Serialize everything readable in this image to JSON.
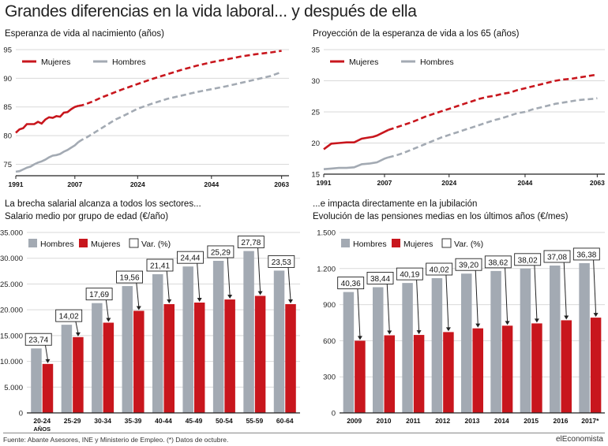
{
  "title": "Grandes diferencias en la vida laboral... y después de ella",
  "source": "Fuente: Abante Asesores, INE y Ministerio de Empleo. (*) Datos de octubre.",
  "brand": "elEconomista",
  "colors": {
    "mujeres": "#c8161d",
    "hombres": "#a3aab3",
    "grid": "#d9d9d9",
    "axis": "#222222"
  },
  "chart_data": [
    {
      "type": "line",
      "subtitle": "Esperanza de vida al nacimiento (años)",
      "ylim": [
        73,
        95
      ],
      "yticks": [
        75,
        80,
        85,
        90,
        95
      ],
      "xlim": [
        1991,
        2065
      ],
      "xticks": [
        1991,
        2007,
        2024,
        2044,
        2063
      ],
      "grid": true,
      "legend": "top-left",
      "series": [
        {
          "name": "Mujeres",
          "style": "solid-then-dashed",
          "x": [
            1991,
            1992,
            1993,
            1994,
            1995,
            1996,
            1997,
            1998,
            1999,
            2000,
            2001,
            2002,
            2003,
            2004,
            2005,
            2006,
            2007,
            2008,
            2009,
            2010,
            2012,
            2014,
            2016,
            2018,
            2020,
            2024,
            2028,
            2032,
            2036,
            2040,
            2044,
            2048,
            2052,
            2056,
            2060,
            2063
          ],
          "y": [
            80.5,
            81.1,
            81.3,
            82.0,
            82.0,
            82.0,
            82.4,
            82.1,
            82.8,
            83.2,
            83.1,
            83.4,
            83.3,
            84.0,
            84.1,
            84.6,
            85.0,
            85.2,
            85.3,
            85.5,
            86.0,
            86.6,
            87.1,
            87.6,
            88.1,
            89.0,
            89.9,
            90.7,
            91.5,
            92.2,
            92.8,
            93.3,
            93.8,
            94.2,
            94.5,
            94.8
          ]
        },
        {
          "name": "Hombres",
          "style": "solid-then-dashed",
          "x": [
            1991,
            1992,
            1993,
            1994,
            1995,
            1996,
            1997,
            1998,
            1999,
            2000,
            2001,
            2002,
            2003,
            2004,
            2005,
            2006,
            2007,
            2008,
            2009,
            2010,
            2012,
            2014,
            2016,
            2018,
            2020,
            2024,
            2028,
            2032,
            2036,
            2040,
            2044,
            2048,
            2052,
            2056,
            2060,
            2063
          ],
          "y": [
            73.7,
            73.8,
            74.1,
            74.4,
            74.6,
            75.0,
            75.3,
            75.5,
            75.8,
            76.2,
            76.5,
            76.6,
            76.8,
            77.2,
            77.5,
            77.9,
            78.3,
            78.9,
            79.3,
            79.6,
            80.4,
            81.2,
            82.0,
            82.8,
            83.4,
            84.7,
            85.6,
            86.4,
            87.0,
            87.6,
            88.1,
            88.6,
            89.2,
            89.8,
            90.4,
            91.1
          ]
        }
      ]
    },
    {
      "type": "line",
      "subtitle": "Proyección de la esperanza de vida a los 65 (años)",
      "ylim": [
        15,
        35
      ],
      "yticks": [
        15,
        20,
        25,
        30,
        35
      ],
      "xlim": [
        1991,
        2065
      ],
      "xticks": [
        1991,
        2007,
        2024,
        2044,
        2063
      ],
      "grid": true,
      "legend": "top-left",
      "series": [
        {
          "name": "Mujeres",
          "style": "solid-then-dashed",
          "x": [
            1991,
            1993,
            1995,
            1997,
            1999,
            2001,
            2003,
            2004,
            2005,
            2007,
            2008,
            2010,
            2012,
            2014,
            2016,
            2018,
            2020,
            2022,
            2024,
            2026,
            2028,
            2030,
            2032,
            2034,
            2036,
            2038,
            2040,
            2042,
            2044,
            2046,
            2048,
            2050,
            2052,
            2054,
            2056,
            2058,
            2060,
            2062,
            2063
          ],
          "y": [
            19.0,
            19.9,
            20.0,
            20.1,
            20.1,
            20.7,
            20.9,
            21.0,
            21.2,
            21.8,
            22.1,
            22.5,
            22.9,
            23.3,
            23.8,
            24.3,
            24.7,
            25.1,
            25.5,
            25.9,
            26.3,
            26.7,
            27.1,
            27.4,
            27.6,
            27.9,
            28.1,
            28.5,
            28.8,
            29.1,
            29.4,
            29.7,
            30.0,
            30.2,
            30.3,
            30.5,
            30.7,
            30.9,
            30.9
          ]
        },
        {
          "name": "Hombres",
          "style": "solid-then-dashed",
          "x": [
            1991,
            1993,
            1995,
            1997,
            1999,
            2001,
            2003,
            2004,
            2005,
            2007,
            2008,
            2010,
            2012,
            2014,
            2016,
            2018,
            2020,
            2022,
            2024,
            2026,
            2028,
            2030,
            2032,
            2034,
            2036,
            2038,
            2040,
            2042,
            2044,
            2046,
            2048,
            2050,
            2052,
            2054,
            2056,
            2058,
            2060,
            2062,
            2063
          ],
          "y": [
            15.8,
            15.9,
            16.0,
            16.0,
            16.1,
            16.6,
            16.7,
            16.8,
            16.9,
            17.5,
            17.7,
            18.0,
            18.4,
            18.9,
            19.4,
            19.9,
            20.4,
            20.9,
            21.3,
            21.7,
            22.1,
            22.5,
            22.9,
            23.3,
            23.7,
            24.0,
            24.4,
            24.8,
            25.0,
            25.4,
            25.7,
            26.0,
            26.3,
            26.5,
            26.7,
            26.9,
            27.0,
            27.1,
            27.2
          ]
        }
      ]
    },
    {
      "type": "bar",
      "title": "La brecha salarial alcanza a todos los sectores...",
      "subtitle": "Salario medio por grupo de edad (€/año)",
      "categories": [
        "20-24",
        "25-29",
        "30-34",
        "35-39",
        "40-44",
        "45-49",
        "50-54",
        "55-59",
        "60-64"
      ],
      "category_unit": "AÑOS",
      "ylim": [
        0,
        35000
      ],
      "yticks": [
        0,
        5000,
        10000,
        15000,
        20000,
        25000,
        30000,
        35000
      ],
      "ytick_labels": [
        "0",
        "5.000",
        "10.000",
        "15.000",
        "20.000",
        "25.000",
        "30.000",
        "35.000"
      ],
      "grid": true,
      "legend": "top-left",
      "series": [
        {
          "name": "Hombres",
          "values": [
            12500,
            17100,
            21300,
            24600,
            26900,
            28400,
            29500,
            31400,
            27600
          ]
        },
        {
          "name": "Mujeres",
          "values": [
            9500,
            14700,
            17500,
            19800,
            21100,
            21400,
            22000,
            22700,
            21100
          ]
        }
      ],
      "var_label": "Var. (%)",
      "var_values": [
        "23,74",
        "14,02",
        "17,69",
        "19,56",
        "21,41",
        "24,44",
        "25,29",
        "27,78",
        "23,53"
      ]
    },
    {
      "type": "bar",
      "title": "...e impacta directamente en la jubilación",
      "subtitle": "Evolución de las pensiones medias en los últimos años (€/mes)",
      "categories": [
        "2009",
        "2010",
        "2011",
        "2012",
        "2013",
        "2014",
        "2015",
        "2016",
        "2017*"
      ],
      "ylim": [
        0,
        1500
      ],
      "yticks": [
        0,
        300,
        600,
        900,
        1200,
        1500
      ],
      "ytick_labels": [
        "0",
        "300",
        "600",
        "900",
        "1.200",
        "1.500"
      ],
      "grid": true,
      "legend": "top-left",
      "series": [
        {
          "name": "Hombres",
          "values": [
            1005,
            1045,
            1080,
            1120,
            1158,
            1180,
            1200,
            1225,
            1245
          ]
        },
        {
          "name": "Mujeres",
          "values": [
            600,
            645,
            648,
            672,
            703,
            725,
            744,
            770,
            792
          ]
        }
      ],
      "var_label": "Var. (%)",
      "var_values": [
        "40,36",
        "38,44",
        "40,19",
        "40,02",
        "39,20",
        "38,62",
        "38,02",
        "37,08",
        "36,38"
      ]
    }
  ]
}
